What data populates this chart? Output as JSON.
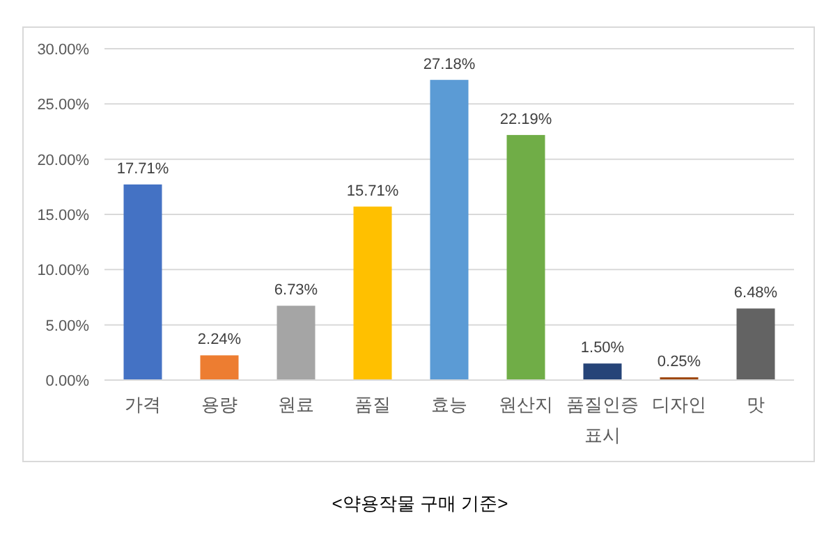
{
  "chart_data": {
    "type": "bar",
    "categories": [
      "가격",
      "용량",
      "원료",
      "품질",
      "효능",
      "원산지",
      "품질인증 표시",
      "디자인",
      "맛"
    ],
    "values": [
      17.71,
      2.24,
      6.73,
      15.71,
      27.18,
      22.19,
      1.5,
      0.25,
      6.48
    ],
    "colors": [
      "#4472c4",
      "#ed7d31",
      "#a5a5a5",
      "#ffc000",
      "#5b9bd5",
      "#70ad47",
      "#264478",
      "#9e480e",
      "#636363"
    ],
    "value_labels": [
      "17.71%",
      "2.24%",
      "6.73%",
      "15.71%",
      "27.18%",
      "22.19%",
      "1.50%",
      "0.25%",
      "6.48%"
    ],
    "ylim": [
      0,
      30
    ],
    "yticks": [
      {
        "value": 0,
        "label": "0.00%"
      },
      {
        "value": 5,
        "label": "5.00%"
      },
      {
        "value": 10,
        "label": "10.00%"
      },
      {
        "value": 15,
        "label": "15.00%"
      },
      {
        "value": 20,
        "label": "20.00%"
      },
      {
        "value": 25,
        "label": "25.00%"
      },
      {
        "value": 30,
        "label": "30.00%"
      }
    ],
    "grid": "y",
    "annotations": [
      "<약용작물 구매 기준>"
    ]
  }
}
